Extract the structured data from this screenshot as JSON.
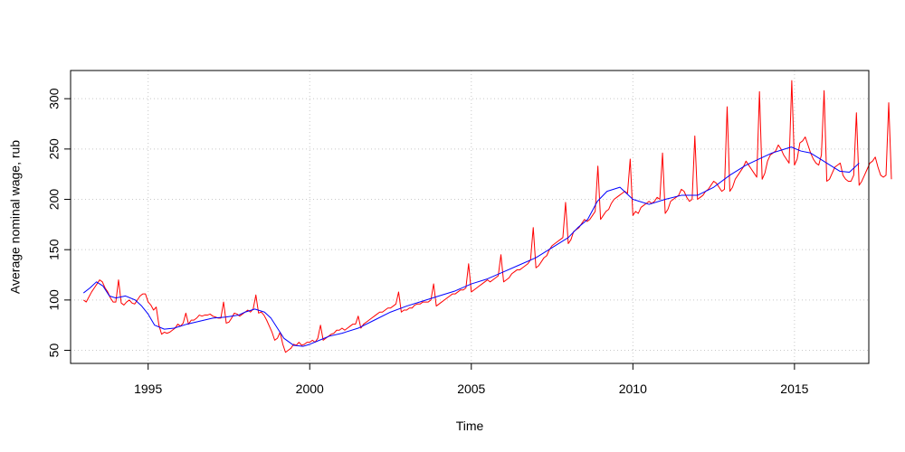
{
  "chart_data": {
    "type": "line",
    "title": "",
    "xlabel": "Time",
    "ylabel": "Average nominal wage, rub",
    "xlim": [
      1992.6,
      2017.3
    ],
    "ylim": [
      37,
      328
    ],
    "grid": true,
    "x_ticks": [
      1995,
      2000,
      2005,
      2010,
      2015
    ],
    "y_ticks": [
      50,
      100,
      150,
      200,
      250,
      300
    ],
    "colors": {
      "raw": "#ff0000",
      "trend": "#0000ff",
      "grid": "#c8c8c8",
      "axis": "#000000"
    },
    "series": [
      {
        "color": "#ff0000",
        "x_start": 1993.0,
        "step": 0.0833333333,
        "values": [
          100,
          98,
          103,
          108,
          112,
          116,
          120,
          118,
          112,
          108,
          102,
          98,
          98,
          120,
          97,
          95,
          98,
          100,
          97,
          96,
          100,
          104,
          106,
          106,
          98,
          95,
          90,
          93,
          75,
          66,
          68,
          67,
          68,
          70,
          72,
          76,
          74,
          77,
          87,
          76,
          80,
          80,
          82,
          85,
          84,
          85,
          85,
          86,
          84,
          83,
          82,
          82,
          98,
          77,
          78,
          82,
          87,
          86,
          84,
          86,
          88,
          90,
          88,
          91,
          105,
          87,
          88,
          85,
          80,
          74,
          68,
          60,
          62,
          68,
          56,
          48,
          50,
          52,
          56,
          55,
          58,
          55,
          56,
          58,
          58,
          60,
          58,
          62,
          75,
          60,
          62,
          64,
          66,
          67,
          70,
          70,
          72,
          70,
          72,
          74,
          76,
          76,
          84,
          72,
          76,
          78,
          80,
          82,
          84,
          86,
          88,
          88,
          90,
          92,
          92,
          94,
          96,
          108,
          88,
          90,
          90,
          92,
          92,
          95,
          96,
          96,
          98,
          98,
          98,
          100,
          116,
          94,
          96,
          98,
          100,
          102,
          104,
          106,
          106,
          108,
          110,
          110,
          112,
          136,
          108,
          110,
          112,
          114,
          116,
          118,
          120,
          118,
          120,
          122,
          124,
          145,
          118,
          120,
          122,
          126,
          128,
          130,
          130,
          132,
          134,
          136,
          140,
          172,
          132,
          134,
          138,
          142,
          144,
          150,
          154,
          156,
          158,
          160,
          162,
          197,
          156,
          160,
          168,
          170,
          172,
          176,
          180,
          178,
          180,
          184,
          188,
          233,
          180,
          184,
          188,
          190,
          196,
          200,
          202,
          204,
          206,
          208,
          206,
          240,
          184,
          188,
          186,
          192,
          194,
          196,
          198,
          196,
          198,
          202,
          200,
          246,
          186,
          190,
          198,
          200,
          202,
          204,
          210,
          208,
          202,
          198,
          200,
          263,
          200,
          202,
          204,
          208,
          210,
          214,
          218,
          216,
          212,
          208,
          210,
          292,
          208,
          212,
          220,
          224,
          228,
          232,
          238,
          234,
          230,
          226,
          222,
          307,
          220,
          226,
          238,
          244,
          246,
          248,
          254,
          250,
          244,
          240,
          236,
          318,
          234,
          240,
          256,
          258,
          262,
          254,
          246,
          240,
          236,
          234,
          244,
          308,
          218,
          220,
          226,
          232,
          234,
          236,
          224,
          220,
          218,
          218,
          224,
          286,
          214,
          218,
          224,
          230,
          236,
          238,
          242,
          232,
          224,
          222,
          224,
          296,
          220
        ]
      },
      {
        "color": "#0000ff",
        "x": [
          1993.0,
          1993.2,
          1993.4,
          1993.6,
          1993.8,
          1994.0,
          1994.3,
          1994.6,
          1994.8,
          1995.0,
          1995.2,
          1995.5,
          1995.8,
          1996.2,
          1996.6,
          1997.0,
          1997.4,
          1997.8,
          1998.0,
          1998.3,
          1998.6,
          1998.8,
          1999.0,
          1999.2,
          1999.5,
          1999.8,
          2000.0,
          2000.3,
          2000.6,
          2001.0,
          2001.5,
          2002.0,
          2002.5,
          2003.0,
          2003.5,
          2004.0,
          2004.5,
          2005.0,
          2005.5,
          2006.0,
          2006.5,
          2007.0,
          2007.5,
          2008.0,
          2008.3,
          2008.6,
          2008.9,
          2009.2,
          2009.6,
          2010.0,
          2010.5,
          2011.0,
          2011.5,
          2012.0,
          2012.5,
          2013.0,
          2013.5,
          2013.9,
          2014.3,
          2014.7,
          2014.9,
          2015.2,
          2015.5,
          2015.8,
          2016.1,
          2016.4,
          2016.7,
          2017.0
        ],
        "values": [
          107,
          112,
          118,
          114,
          104,
          102,
          104,
          100,
          94,
          86,
          75,
          71,
          72,
          76,
          79,
          82,
          83,
          85,
          88,
          91,
          88,
          82,
          72,
          62,
          55,
          54,
          56,
          60,
          64,
          67,
          72,
          80,
          88,
          94,
          99,
          104,
          109,
          116,
          121,
          128,
          135,
          142,
          152,
          162,
          172,
          180,
          198,
          208,
          212,
          200,
          195,
          200,
          204,
          204,
          212,
          224,
          234,
          240,
          246,
          250,
          252,
          248,
          246,
          240,
          234,
          228,
          227,
          236
        ]
      }
    ]
  }
}
